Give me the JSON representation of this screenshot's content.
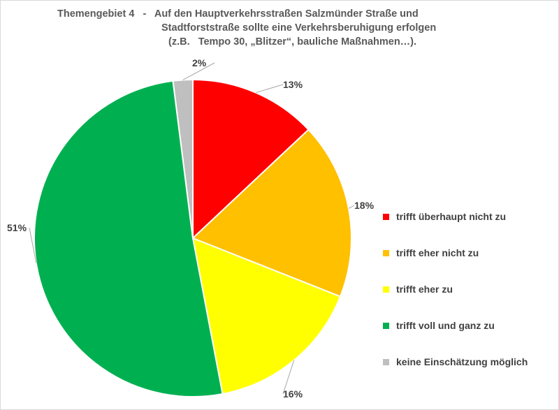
{
  "chart_data": {
    "type": "pie",
    "title_lines": [
      "Themengebiet 4   -   Auf den Hauptverkehrsstraßen Salzmünder Straße und",
      "Stadtforststraße sollte eine Verkehrsberuhigung erfolgen",
      "(z.B.   Tempo 30, „Blitzer“, bauliche Maßnahmen…)."
    ],
    "slices": [
      {
        "label": "trifft überhaupt nicht zu",
        "value": 13,
        "display": "13%",
        "color": "#ff0000"
      },
      {
        "label": "trifft eher nicht zu",
        "value": 18,
        "display": "18%",
        "color": "#ffc000"
      },
      {
        "label": "trifft eher zu",
        "value": 16,
        "display": "16%",
        "color": "#ffff00"
      },
      {
        "label": "trifft voll und ganz zu",
        "value": 51,
        "display": "51%",
        "color": "#00b050"
      },
      {
        "label": "keine Einschätzung möglich",
        "value": 2,
        "display": "2%",
        "color": "#bfbfbf"
      }
    ],
    "legend_position": "right"
  }
}
